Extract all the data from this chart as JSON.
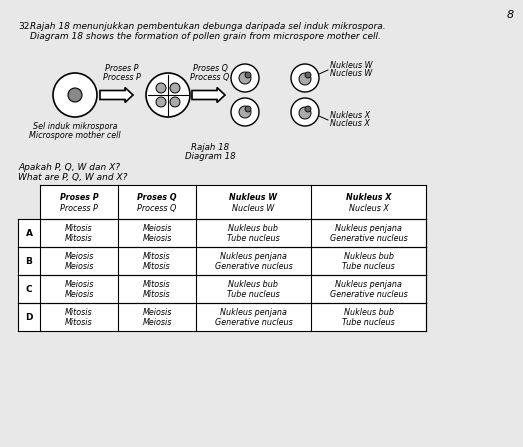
{
  "background_color": "#e8e8e8",
  "page_number": "8",
  "question_number": "32.",
  "title_malay": "Rajah 18 menunjukkan pembentukan debunga daripada sel induk mikrospora.",
  "title_english": "Diagram 18 shows the formation of pollen grain from microspore mother cell.",
  "process_p_malay": "Proses P",
  "process_p_english": "Process P",
  "process_q_malay": "Proses Q",
  "process_q_english": "Process Q",
  "nucleus_w_malay": "Nukleus W",
  "nucleus_w_english": "Nucleus W",
  "nucleus_x_malay": "Nukleus X",
  "nucleus_x_english": "Nucleus X",
  "cell_label_malay": "Sel induk mikrospora",
  "cell_label_english": "Microspore mother cell",
  "diagram_label_malay": "Rajah 18",
  "diagram_label_english": "Diagram 18",
  "question_malay": "Apakah P, Q, W dan X?",
  "question_english": "What are P, Q, W and X?",
  "table_headers": [
    "Proses P\nProcess P",
    "Proses Q\nProcess Q",
    "Nukleus W\nNucleus W",
    "Nukleus X\nNucleus X"
  ],
  "table_rows": [
    [
      "A",
      "Mitosis\nMitosis",
      "Meiosis\nMeiosis",
      "Nukleus bub\nTube nucleus",
      "Nukleus penjana\nGenerative nucleus"
    ],
    [
      "B",
      "Meiosis\nMeiosis",
      "Mitosis\nMitosis",
      "Nukleus penjana\nGenerative nucleus",
      "Nukleus bub\nTube nucleus"
    ],
    [
      "C",
      "Meiosis\nMeiosis",
      "Mitosis\nMitosis",
      "Nukleus bub\nTube nucleus",
      "Nukleus penjana\nGenerative nucleus"
    ],
    [
      "D",
      "Mitosis\nMitosis",
      "Meiosis\nMeiosis",
      "Nukleus penjana\nGenerative nucleus",
      "Nukleus bub\nTube nucleus"
    ]
  ]
}
